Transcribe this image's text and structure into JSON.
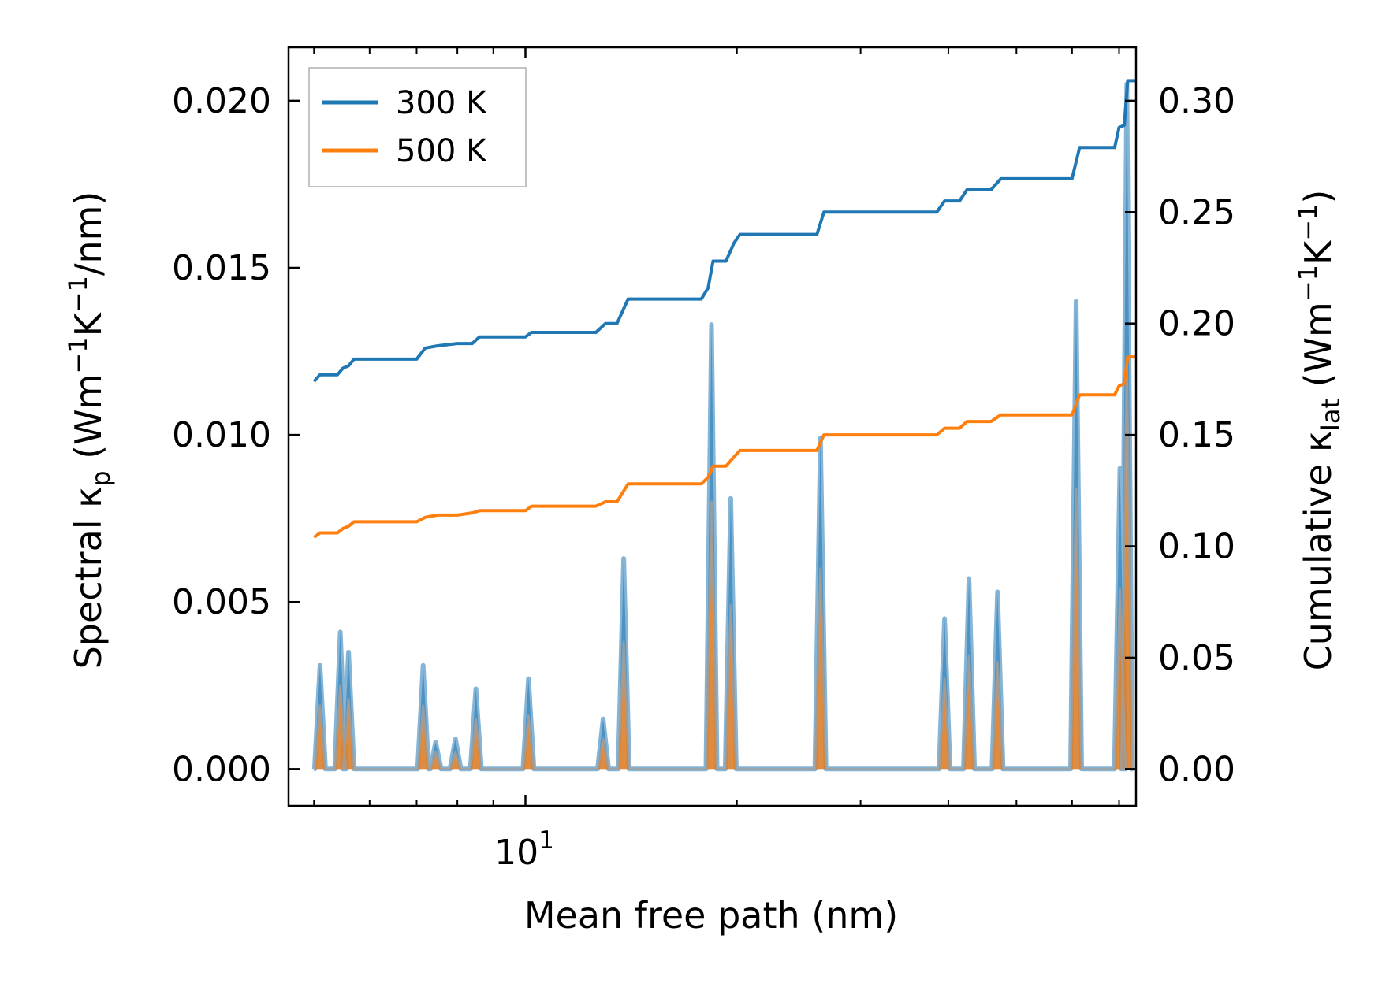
{
  "chart_data": {
    "type": "line",
    "xlabel": "Mean free path (nm)",
    "ylabel_left": {
      "base": "Spectral κ",
      "sub": "p",
      "unit_open": " (Wm",
      "sup1": "−1",
      "mid": "K",
      "sup2": "−1",
      "tail": "/nm)"
    },
    "ylabel_right": {
      "base": "Cumulative κ",
      "sub": "lat",
      "unit_open": " (Wm",
      "sup1": "−1",
      "mid": "K",
      "sup2": "−1",
      "tail": ")"
    },
    "x_scale": "log",
    "xlim": [
      4.6,
      74
    ],
    "x_major_tick": {
      "value": 10,
      "base": "10",
      "exp": "1"
    },
    "x_minor_ticks": [
      5,
      6,
      7,
      8,
      9,
      20,
      30,
      40,
      50,
      60,
      70
    ],
    "ylim_left": [
      -0.0011,
      0.0216
    ],
    "ylim_right": [
      -0.0165,
      0.324
    ],
    "left_ticks": [
      "0.000",
      "0.005",
      "0.010",
      "0.015",
      "0.020"
    ],
    "right_ticks": [
      "0.00",
      "0.05",
      "0.10",
      "0.15",
      "0.20",
      "0.25",
      "0.30"
    ],
    "legend": {
      "location": "upper-left",
      "entries": [
        {
          "label": "300 K",
          "color": "#1f77b4"
        },
        {
          "label": "500 K",
          "color": "#ff7f0e"
        }
      ]
    },
    "spectral_peaks": [
      {
        "x": 5.1,
        "s300": 0.0031,
        "s500": 0.0019
      },
      {
        "x": 5.45,
        "s300": 0.0041,
        "s500": 0.0025
      },
      {
        "x": 5.6,
        "s300": 0.0035,
        "s500": 0.0021
      },
      {
        "x": 7.15,
        "s300": 0.0031,
        "s500": 0.0019
      },
      {
        "x": 7.45,
        "s300": 0.0008,
        "s500": 0.0005
      },
      {
        "x": 7.95,
        "s300": 0.0009,
        "s500": 0.0005
      },
      {
        "x": 8.5,
        "s300": 0.0024,
        "s500": 0.0015
      },
      {
        "x": 10.1,
        "s300": 0.0027,
        "s500": 0.0016
      },
      {
        "x": 12.9,
        "s300": 0.0015,
        "s500": 0.0009
      },
      {
        "x": 13.8,
        "s300": 0.0063,
        "s500": 0.0038
      },
      {
        "x": 18.4,
        "s300": 0.0133,
        "s500": 0.008
      },
      {
        "x": 19.6,
        "s300": 0.0081,
        "s500": 0.0049
      },
      {
        "x": 26.3,
        "s300": 0.0099,
        "s500": 0.006
      },
      {
        "x": 39.5,
        "s300": 0.0045,
        "s500": 0.0027
      },
      {
        "x": 42.8,
        "s300": 0.0057,
        "s500": 0.0034
      },
      {
        "x": 47.0,
        "s300": 0.0053,
        "s500": 0.0032
      },
      {
        "x": 60.8,
        "s300": 0.014,
        "s500": 0.0084
      },
      {
        "x": 70.2,
        "s300": 0.009,
        "s500": 0.0054
      },
      {
        "x": 71.8,
        "s300": 0.0205,
        "s500": 0.0123
      }
    ],
    "series": [
      {
        "name": "300 K",
        "color": "#1f77b4",
        "points": [
          [
            5.0,
            0.174
          ],
          [
            5.1,
            0.177
          ],
          [
            5.4,
            0.177
          ],
          [
            5.5,
            0.18
          ],
          [
            5.6,
            0.181
          ],
          [
            5.7,
            0.184
          ],
          [
            7.0,
            0.184
          ],
          [
            7.2,
            0.189
          ],
          [
            7.5,
            0.19
          ],
          [
            8.0,
            0.191
          ],
          [
            8.4,
            0.191
          ],
          [
            8.6,
            0.194
          ],
          [
            10.0,
            0.194
          ],
          [
            10.2,
            0.196
          ],
          [
            12.6,
            0.196
          ],
          [
            13.0,
            0.2
          ],
          [
            13.5,
            0.2
          ],
          [
            14.0,
            0.211
          ],
          [
            17.8,
            0.211
          ],
          [
            18.2,
            0.216
          ],
          [
            18.5,
            0.228
          ],
          [
            19.3,
            0.228
          ],
          [
            19.8,
            0.236
          ],
          [
            20.2,
            0.24
          ],
          [
            26.0,
            0.24
          ],
          [
            26.6,
            0.25
          ],
          [
            38.5,
            0.25
          ],
          [
            39.5,
            0.255
          ],
          [
            41.5,
            0.255
          ],
          [
            42.5,
            0.26
          ],
          [
            46.0,
            0.26
          ],
          [
            47.5,
            0.265
          ],
          [
            60.0,
            0.265
          ],
          [
            61.5,
            0.279
          ],
          [
            69.0,
            0.279
          ],
          [
            70.0,
            0.288
          ],
          [
            71.2,
            0.289
          ],
          [
            72.0,
            0.309
          ],
          [
            74.0,
            0.309
          ]
        ]
      },
      {
        "name": "500 K",
        "color": "#ff7f0e",
        "points": [
          [
            5.0,
            0.104
          ],
          [
            5.1,
            0.106
          ],
          [
            5.4,
            0.106
          ],
          [
            5.5,
            0.108
          ],
          [
            5.6,
            0.109
          ],
          [
            5.7,
            0.111
          ],
          [
            7.0,
            0.111
          ],
          [
            7.2,
            0.113
          ],
          [
            7.5,
            0.114
          ],
          [
            8.0,
            0.114
          ],
          [
            8.4,
            0.115
          ],
          [
            8.6,
            0.116
          ],
          [
            10.0,
            0.116
          ],
          [
            10.2,
            0.118
          ],
          [
            12.6,
            0.118
          ],
          [
            13.0,
            0.12
          ],
          [
            13.5,
            0.12
          ],
          [
            14.0,
            0.128
          ],
          [
            17.8,
            0.128
          ],
          [
            18.2,
            0.131
          ],
          [
            18.5,
            0.136
          ],
          [
            19.3,
            0.136
          ],
          [
            19.8,
            0.14
          ],
          [
            20.2,
            0.143
          ],
          [
            26.0,
            0.143
          ],
          [
            26.6,
            0.15
          ],
          [
            38.5,
            0.15
          ],
          [
            39.5,
            0.153
          ],
          [
            41.5,
            0.153
          ],
          [
            42.5,
            0.156
          ],
          [
            46.0,
            0.156
          ],
          [
            47.5,
            0.159
          ],
          [
            60.0,
            0.159
          ],
          [
            61.5,
            0.168
          ],
          [
            69.0,
            0.168
          ],
          [
            70.0,
            0.172
          ],
          [
            71.2,
            0.173
          ],
          [
            72.0,
            0.185
          ],
          [
            74.0,
            0.185
          ]
        ]
      }
    ]
  }
}
